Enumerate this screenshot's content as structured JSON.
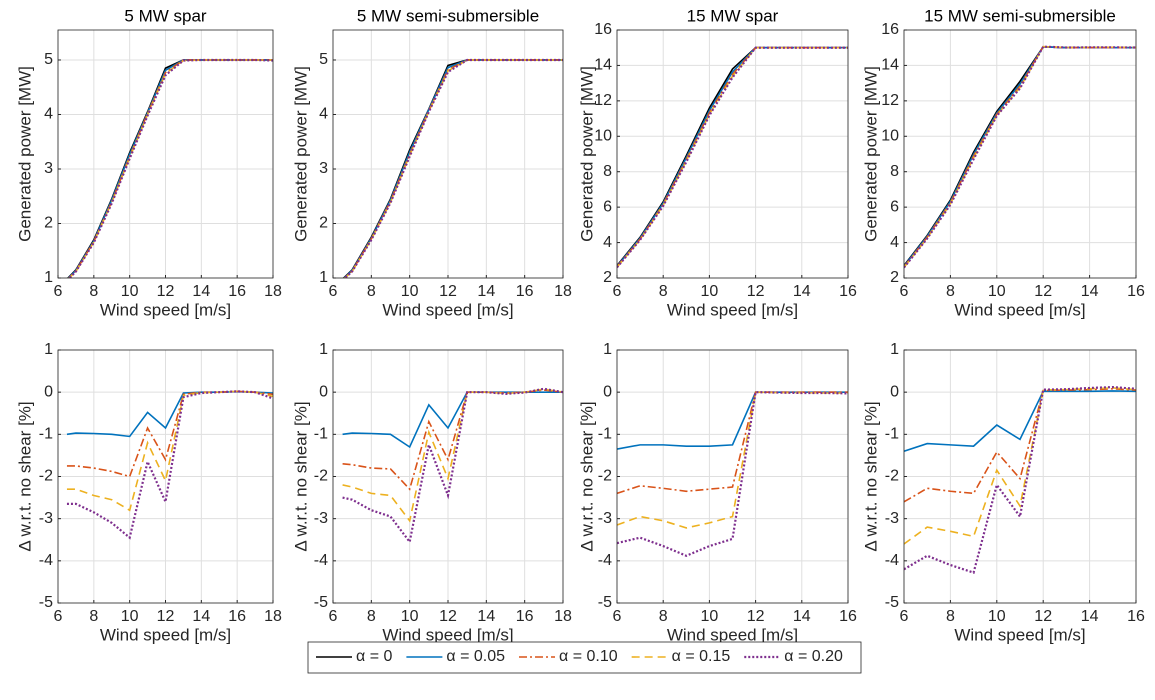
{
  "chart_data": [
    {
      "type": "line",
      "title": "5 MW spar",
      "xlabel": "Wind speed [m/s]",
      "ylabel": "Generated power [MW]",
      "grid": true,
      "x": [
        6.5,
        7,
        8,
        9,
        10,
        11,
        12,
        13,
        14,
        15,
        16,
        17,
        18
      ],
      "xlim": [
        6,
        18
      ],
      "xticks": [
        6,
        8,
        10,
        12,
        14,
        16,
        18
      ],
      "ylim": [
        1,
        5.55
      ],
      "yticks": [
        1,
        2,
        3,
        4,
        5
      ],
      "series": [
        {
          "name": "α = 0",
          "color": "#000000",
          "linestyle": "solid",
          "values": [
            0.98,
            1.15,
            1.7,
            2.45,
            3.3,
            4.05,
            4.85,
            5,
            5,
            5,
            5,
            5,
            5
          ]
        },
        {
          "name": "α = 0.05",
          "color": "#0072BD",
          "linestyle": "solid",
          "values": [
            0.97,
            1.14,
            1.68,
            2.43,
            3.27,
            4.03,
            4.81,
            5,
            5,
            5,
            5,
            5,
            5
          ]
        },
        {
          "name": "α = 0.10",
          "color": "#D95319",
          "linestyle": "dashdot",
          "values": [
            0.96,
            1.13,
            1.67,
            2.4,
            3.23,
            4.02,
            4.77,
            5,
            5,
            5,
            5,
            5,
            5
          ]
        },
        {
          "name": "α = 0.15",
          "color": "#EDB120",
          "linestyle": "dashed",
          "values": [
            0.96,
            1.12,
            1.66,
            2.39,
            3.21,
            4.0,
            4.75,
            4.99,
            5,
            5,
            5,
            5,
            5
          ]
        },
        {
          "name": "α = 0.20",
          "color": "#7E2F8E",
          "linestyle": "dotted",
          "values": [
            0.95,
            1.12,
            1.65,
            2.37,
            3.19,
            3.98,
            4.72,
            4.99,
            5,
            5,
            5,
            5,
            4.99
          ]
        }
      ]
    },
    {
      "type": "line",
      "title": "5 MW semi-submersible",
      "xlabel": "Wind speed [m/s]",
      "ylabel": "Generated power [MW]",
      "grid": true,
      "x": [
        6.5,
        7,
        8,
        9,
        10,
        11,
        12,
        13,
        14,
        15,
        16,
        17,
        18
      ],
      "xlim": [
        6,
        18
      ],
      "xticks": [
        6,
        8,
        10,
        12,
        14,
        16,
        18
      ],
      "ylim": [
        1,
        5.55
      ],
      "yticks": [
        1,
        2,
        3,
        4,
        5
      ],
      "series": [
        {
          "name": "α = 0",
          "color": "#000000",
          "linestyle": "solid",
          "values": [
            0.98,
            1.15,
            1.75,
            2.45,
            3.35,
            4.1,
            4.9,
            5,
            5,
            5,
            5,
            5,
            5
          ]
        },
        {
          "name": "α = 0.05",
          "color": "#0072BD",
          "linestyle": "solid",
          "values": [
            0.97,
            1.14,
            1.73,
            2.43,
            3.31,
            4.09,
            4.86,
            5,
            5,
            5,
            5,
            5,
            5
          ]
        },
        {
          "name": "α = 0.10",
          "color": "#D95319",
          "linestyle": "dashdot",
          "values": [
            0.96,
            1.13,
            1.72,
            2.41,
            3.27,
            4.07,
            4.82,
            5,
            5,
            5,
            5,
            5,
            5
          ]
        },
        {
          "name": "α = 0.15",
          "color": "#EDB120",
          "linestyle": "dashed",
          "values": [
            0.96,
            1.12,
            1.71,
            2.39,
            3.25,
            4.06,
            4.8,
            5,
            5,
            5,
            5,
            5,
            5
          ]
        },
        {
          "name": "α = 0.20",
          "color": "#7E2F8E",
          "linestyle": "dotted",
          "values": [
            0.96,
            1.12,
            1.7,
            2.38,
            3.23,
            4.05,
            4.78,
            5,
            5,
            5,
            5,
            5,
            5
          ]
        }
      ]
    },
    {
      "type": "line",
      "title": "15 MW spar",
      "xlabel": "Wind speed [m/s]",
      "ylabel": "Generated power [MW]",
      "grid": true,
      "x": [
        6,
        7,
        8,
        9,
        10,
        11,
        12,
        13,
        14,
        15,
        16
      ],
      "xlim": [
        6,
        16
      ],
      "xticks": [
        6,
        8,
        10,
        12,
        14,
        16
      ],
      "ylim": [
        2,
        16
      ],
      "yticks": [
        2,
        4,
        6,
        8,
        10,
        12,
        14,
        16
      ],
      "series": [
        {
          "name": "α = 0",
          "color": "#000000",
          "linestyle": "solid",
          "values": [
            2.7,
            4.3,
            6.3,
            8.9,
            11.6,
            13.8,
            15,
            15,
            15,
            15,
            15
          ]
        },
        {
          "name": "α = 0.05",
          "color": "#0072BD",
          "linestyle": "solid",
          "values": [
            2.66,
            4.25,
            6.22,
            8.79,
            11.45,
            13.63,
            15,
            15,
            15,
            15,
            15
          ]
        },
        {
          "name": "α = 0.10",
          "color": "#D95319",
          "linestyle": "dashdot",
          "values": [
            2.64,
            4.2,
            6.16,
            8.69,
            11.33,
            13.49,
            15,
            15,
            15,
            15,
            15
          ]
        },
        {
          "name": "α = 0.15",
          "color": "#EDB120",
          "linestyle": "dashed",
          "values": [
            2.61,
            4.17,
            6.11,
            8.61,
            11.24,
            13.39,
            15,
            15,
            15,
            15,
            15
          ]
        },
        {
          "name": "α = 0.20",
          "color": "#7E2F8E",
          "linestyle": "dotted",
          "values": [
            2.6,
            4.15,
            6.07,
            8.55,
            11.18,
            13.32,
            15,
            15,
            15,
            15,
            15
          ]
        }
      ]
    },
    {
      "type": "line",
      "title": "15 MW semi-submersible",
      "xlabel": "Wind speed [m/s]",
      "ylabel": "Generated power [MW]",
      "grid": true,
      "x": [
        6,
        7,
        8,
        9,
        10,
        11,
        12,
        13,
        14,
        15,
        16
      ],
      "xlim": [
        6,
        16
      ],
      "xticks": [
        6,
        8,
        10,
        12,
        14,
        16
      ],
      "ylim": [
        2,
        16
      ],
      "yticks": [
        2,
        4,
        6,
        8,
        10,
        12,
        14,
        16
      ],
      "series": [
        {
          "name": "α = 0",
          "color": "#000000",
          "linestyle": "solid",
          "values": [
            2.7,
            4.4,
            6.4,
            9.1,
            11.4,
            13.1,
            15.05,
            15,
            15,
            15,
            15
          ]
        },
        {
          "name": "α = 0.05",
          "color": "#0072BD",
          "linestyle": "solid",
          "values": [
            2.66,
            4.35,
            6.32,
            8.98,
            11.31,
            12.95,
            15.05,
            15,
            15,
            15,
            15
          ]
        },
        {
          "name": "α = 0.10",
          "color": "#D95319",
          "linestyle": "dashdot",
          "values": [
            2.63,
            4.3,
            6.25,
            8.88,
            11.24,
            12.83,
            15.06,
            15.01,
            15.01,
            15.01,
            15.01
          ]
        },
        {
          "name": "α = 0.15",
          "color": "#EDB120",
          "linestyle": "dashed",
          "values": [
            2.6,
            4.26,
            6.19,
            8.79,
            11.19,
            12.75,
            15.06,
            15.01,
            15.01,
            15.02,
            15.01
          ]
        },
        {
          "name": "α = 0.20",
          "color": "#7E2F8E",
          "linestyle": "dotted",
          "values": [
            2.59,
            4.23,
            6.14,
            8.71,
            11.15,
            12.71,
            15.06,
            15.01,
            15.02,
            15.02,
            15.01
          ]
        }
      ]
    },
    {
      "type": "line",
      "xlabel": "Wind speed [m/s]",
      "ylabel": "Δ w.r.t. no shear [%]",
      "grid": true,
      "x": [
        6.5,
        7,
        8,
        9,
        10,
        11,
        12,
        13,
        14,
        15,
        16,
        17,
        18
      ],
      "xlim": [
        6,
        18
      ],
      "xticks": [
        6,
        8,
        10,
        12,
        14,
        16,
        18
      ],
      "ylim": [
        -5,
        1
      ],
      "yticks": [
        -5,
        -4,
        -3,
        -2,
        -1,
        0,
        1
      ],
      "series": [
        {
          "name": "α = 0.05",
          "color": "#0072BD",
          "linestyle": "solid",
          "values": [
            -1.0,
            -0.97,
            -0.98,
            -1.0,
            -1.05,
            -0.48,
            -0.85,
            -0.02,
            0,
            0,
            0.01,
            0,
            -0.02
          ]
        },
        {
          "name": "α = 0.10",
          "color": "#D95319",
          "linestyle": "dashdot",
          "values": [
            -1.75,
            -1.75,
            -1.8,
            -1.88,
            -2.0,
            -0.85,
            -1.6,
            -0.05,
            0,
            0,
            0.02,
            0,
            -0.05
          ]
        },
        {
          "name": "α = 0.15",
          "color": "#EDB120",
          "linestyle": "dashed",
          "values": [
            -2.3,
            -2.3,
            -2.45,
            -2.55,
            -2.8,
            -1.2,
            -2.1,
            -0.08,
            -0.01,
            0,
            0.02,
            0,
            -0.1
          ]
        },
        {
          "name": "α = 0.20",
          "color": "#7E2F8E",
          "linestyle": "dotted",
          "values": [
            -2.65,
            -2.65,
            -2.85,
            -3.1,
            -3.45,
            -1.65,
            -2.6,
            -0.12,
            -0.02,
            0,
            0.02,
            0,
            -0.15
          ]
        }
      ]
    },
    {
      "type": "line",
      "xlabel": "Wind speed [m/s]",
      "ylabel": "Δ w.r.t. no shear [%]",
      "grid": true,
      "x": [
        6.5,
        7,
        8,
        9,
        10,
        11,
        12,
        13,
        14,
        15,
        16,
        17,
        18
      ],
      "xlim": [
        6,
        18
      ],
      "xticks": [
        6,
        8,
        10,
        12,
        14,
        16,
        18
      ],
      "ylim": [
        -5,
        1
      ],
      "yticks": [
        -5,
        -4,
        -3,
        -2,
        -1,
        0,
        1
      ],
      "series": [
        {
          "name": "α = 0.05",
          "color": "#0072BD",
          "linestyle": "solid",
          "values": [
            -1.0,
            -0.97,
            -0.98,
            -1.0,
            -1.3,
            -0.3,
            -0.85,
            0,
            0,
            0,
            0,
            0,
            0
          ]
        },
        {
          "name": "α = 0.10",
          "color": "#D95319",
          "linestyle": "dashdot",
          "values": [
            -1.7,
            -1.72,
            -1.8,
            -1.82,
            -2.3,
            -0.7,
            -1.6,
            0,
            0,
            -0.02,
            0,
            0.05,
            0
          ]
        },
        {
          "name": "α = 0.15",
          "color": "#EDB120",
          "linestyle": "dashed",
          "values": [
            -2.2,
            -2.25,
            -2.4,
            -2.45,
            -3.05,
            -0.95,
            -2.05,
            0,
            0,
            -0.03,
            0,
            0.07,
            0
          ]
        },
        {
          "name": "α = 0.20",
          "color": "#7E2F8E",
          "linestyle": "dotted",
          "values": [
            -2.5,
            -2.55,
            -2.8,
            -2.95,
            -3.55,
            -1.25,
            -2.45,
            0,
            0,
            -0.04,
            -0.01,
            0.08,
            0
          ]
        }
      ]
    },
    {
      "type": "line",
      "xlabel": "Wind speed [m/s]",
      "ylabel": "Δ w.r.t. no shear [%]",
      "grid": true,
      "x": [
        6,
        7,
        8,
        9,
        10,
        11,
        12,
        13,
        14,
        15,
        16
      ],
      "xlim": [
        6,
        16
      ],
      "xticks": [
        6,
        8,
        10,
        12,
        14,
        16
      ],
      "ylim": [
        -5,
        1
      ],
      "yticks": [
        -5,
        -4,
        -3,
        -2,
        -1,
        0,
        1
      ],
      "series": [
        {
          "name": "α = 0.05",
          "color": "#0072BD",
          "linestyle": "solid",
          "values": [
            -1.35,
            -1.25,
            -1.25,
            -1.28,
            -1.28,
            -1.25,
            0,
            0,
            0,
            0,
            0
          ]
        },
        {
          "name": "α = 0.10",
          "color": "#D95319",
          "linestyle": "dashdot",
          "values": [
            -2.4,
            -2.22,
            -2.28,
            -2.35,
            -2.3,
            -2.25,
            0,
            0,
            0,
            0,
            0
          ]
        },
        {
          "name": "α = 0.15",
          "color": "#EDB120",
          "linestyle": "dashed",
          "values": [
            -3.15,
            -2.95,
            -3.05,
            -3.22,
            -3.1,
            -2.95,
            0,
            -0.01,
            -0.01,
            -0.02,
            -0.02
          ]
        },
        {
          "name": "α = 0.20",
          "color": "#7E2F8E",
          "linestyle": "dotted",
          "values": [
            -3.58,
            -3.45,
            -3.65,
            -3.88,
            -3.65,
            -3.48,
            0,
            -0.01,
            -0.02,
            -0.02,
            -0.03
          ]
        }
      ]
    },
    {
      "type": "line",
      "xlabel": "Wind speed [m/s]",
      "ylabel": "Δ w.r.t. no shear [%]",
      "grid": true,
      "x": [
        6,
        7,
        8,
        9,
        10,
        11,
        12,
        13,
        14,
        15,
        16
      ],
      "xlim": [
        6,
        16
      ],
      "xticks": [
        6,
        8,
        10,
        12,
        14,
        16
      ],
      "ylim": [
        -5,
        1
      ],
      "yticks": [
        -5,
        -4,
        -3,
        -2,
        -1,
        0,
        1
      ],
      "series": [
        {
          "name": "α = 0.05",
          "color": "#0072BD",
          "linestyle": "solid",
          "values": [
            -1.4,
            -1.22,
            -1.25,
            -1.28,
            -0.78,
            -1.12,
            0.02,
            0.02,
            0.02,
            0.03,
            0.02
          ]
        },
        {
          "name": "α = 0.10",
          "color": "#D95319",
          "linestyle": "dashdot",
          "values": [
            -2.6,
            -2.28,
            -2.35,
            -2.4,
            -1.42,
            -2.05,
            0.04,
            0.05,
            0.06,
            0.08,
            0.05
          ]
        },
        {
          "name": "α = 0.15",
          "color": "#EDB120",
          "linestyle": "dashed",
          "values": [
            -3.6,
            -3.2,
            -3.3,
            -3.42,
            -1.85,
            -2.7,
            0.05,
            0.06,
            0.08,
            0.1,
            0.06
          ]
        },
        {
          "name": "α = 0.20",
          "color": "#7E2F8E",
          "linestyle": "dotted",
          "values": [
            -4.2,
            -3.88,
            -4.1,
            -4.28,
            -2.2,
            -2.95,
            0.06,
            0.07,
            0.1,
            0.12,
            0.08
          ]
        }
      ]
    }
  ]
}
